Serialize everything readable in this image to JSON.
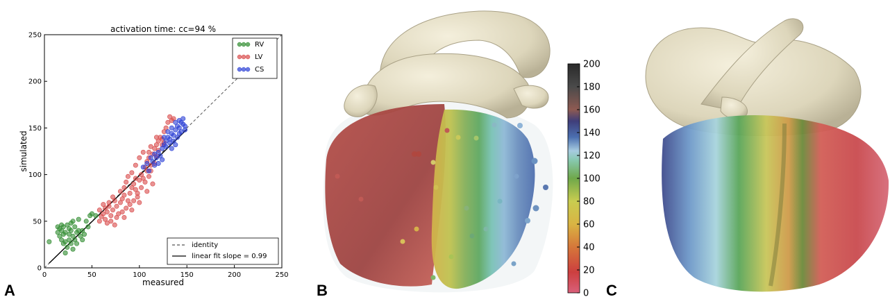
{
  "figure": {
    "panels": [
      "A",
      "B",
      "C"
    ]
  },
  "chart_data": [
    {
      "type": "scatter",
      "title": "activation time: cc=94 %",
      "xlabel": "measured",
      "ylabel": "simulated",
      "xlim": [
        0,
        250
      ],
      "ylim": [
        0,
        250
      ],
      "xticks": [
        0,
        50,
        100,
        150,
        200,
        250
      ],
      "yticks": [
        0,
        50,
        100,
        150,
        200,
        250
      ],
      "grid": false,
      "legend_top": "top-right",
      "legend_bottom": "bottom-right",
      "series": [
        {
          "name": "RV",
          "color": "#2e8b2e",
          "points": [
            [
              5,
              28
            ],
            [
              14,
              38
            ],
            [
              16,
              42
            ],
            [
              18,
              40
            ],
            [
              20,
              44
            ],
            [
              22,
              38
            ],
            [
              24,
              46
            ],
            [
              26,
              42
            ],
            [
              28,
              48
            ],
            [
              30,
              50
            ],
            [
              32,
              44
            ],
            [
              20,
              36
            ],
            [
              18,
              30
            ],
            [
              22,
              28
            ],
            [
              26,
              30
            ],
            [
              28,
              26
            ],
            [
              30,
              34
            ],
            [
              34,
              38
            ],
            [
              36,
              40
            ],
            [
              38,
              34
            ],
            [
              24,
              22
            ],
            [
              20,
              26
            ],
            [
              16,
              34
            ],
            [
              40,
              40
            ],
            [
              42,
              36
            ],
            [
              44,
              50
            ],
            [
              48,
              56
            ],
            [
              50,
              58
            ],
            [
              36,
              52
            ],
            [
              32,
              30
            ],
            [
              30,
              20
            ],
            [
              22,
              16
            ],
            [
              46,
              44
            ],
            [
              26,
              36
            ],
            [
              28,
              40
            ],
            [
              54,
              56
            ],
            [
              40,
              30
            ],
            [
              34,
              26
            ],
            [
              18,
              46
            ],
            [
              14,
              44
            ]
          ]
        },
        {
          "name": "LV",
          "color": "#d84a4a",
          "points": [
            [
              58,
              62
            ],
            [
              60,
              55
            ],
            [
              62,
              58
            ],
            [
              64,
              64
            ],
            [
              66,
              60
            ],
            [
              68,
              66
            ],
            [
              70,
              56
            ],
            [
              72,
              62
            ],
            [
              74,
              72
            ],
            [
              76,
              66
            ],
            [
              78,
              58
            ],
            [
              80,
              70
            ],
            [
              82,
              74
            ],
            [
              84,
              78
            ],
            [
              86,
              64
            ],
            [
              88,
              72
            ],
            [
              90,
              80
            ],
            [
              92,
              86
            ],
            [
              94,
              90
            ],
            [
              96,
              84
            ],
            [
              98,
              76
            ],
            [
              100,
              94
            ],
            [
              102,
              100
            ],
            [
              104,
              96
            ],
            [
              106,
              108
            ],
            [
              108,
              114
            ],
            [
              110,
              118
            ],
            [
              112,
              110
            ],
            [
              114,
              122
            ],
            [
              116,
              128
            ],
            [
              118,
              132
            ],
            [
              120,
              136
            ],
            [
              122,
              140
            ],
            [
              124,
              138
            ],
            [
              126,
              146
            ],
            [
              128,
              150
            ],
            [
              130,
              156
            ],
            [
              132,
              162
            ],
            [
              134,
              158
            ],
            [
              136,
              160
            ],
            [
              88,
              98
            ],
            [
              92,
              102
            ],
            [
              86,
              92
            ],
            [
              84,
              86
            ],
            [
              80,
              82
            ],
            [
              96,
              110
            ],
            [
              100,
              118
            ],
            [
              104,
              124
            ],
            [
              72,
              76
            ],
            [
              68,
              70
            ],
            [
              64,
              52
            ],
            [
              70,
              50
            ],
            [
              76,
              54
            ],
            [
              82,
              60
            ],
            [
              90,
              68
            ],
            [
              94,
              72
            ],
            [
              98,
              80
            ],
            [
              102,
              86
            ],
            [
              106,
              92
            ],
            [
              110,
              98
            ],
            [
              112,
              104
            ],
            [
              116,
              112
            ],
            [
              118,
              120
            ],
            [
              120,
              126
            ],
            [
              124,
              132
            ],
            [
              126,
              134
            ],
            [
              66,
              48
            ],
            [
              74,
              46
            ],
            [
              84,
              54
            ],
            [
              92,
              62
            ],
            [
              100,
              70
            ],
            [
              108,
              82
            ],
            [
              114,
              90
            ],
            [
              62,
              68
            ],
            [
              58,
              50
            ],
            [
              96,
              96
            ],
            [
              108,
              104
            ],
            [
              110,
              124
            ],
            [
              112,
              130
            ],
            [
              118,
              140
            ]
          ]
        },
        {
          "name": "CS",
          "color": "#2a3fd6",
          "points": [
            [
              104,
              108
            ],
            [
              108,
              112
            ],
            [
              112,
              118
            ],
            [
              114,
              114
            ],
            [
              116,
              122
            ],
            [
              118,
              118
            ],
            [
              120,
              124
            ],
            [
              122,
              120
            ],
            [
              124,
              128
            ],
            [
              126,
              132
            ],
            [
              128,
              136
            ],
            [
              130,
              140
            ],
            [
              132,
              138
            ],
            [
              134,
              144
            ],
            [
              136,
              142
            ],
            [
              138,
              148
            ],
            [
              140,
              152
            ],
            [
              142,
              150
            ],
            [
              144,
              156
            ],
            [
              146,
              154
            ],
            [
              128,
              130
            ],
            [
              132,
              134
            ],
            [
              136,
              136
            ],
            [
              140,
              140
            ],
            [
              144,
              146
            ],
            [
              126,
              140
            ],
            [
              130,
              146
            ],
            [
              134,
              150
            ],
            [
              138,
              156
            ],
            [
              142,
              158
            ],
            [
              120,
              112
            ],
            [
              124,
              116
            ],
            [
              116,
              110
            ],
            [
              110,
              104
            ],
            [
              146,
              160
            ],
            [
              148,
              152
            ],
            [
              138,
              132
            ],
            [
              134,
              128
            ],
            [
              142,
              144
            ],
            [
              148,
              148
            ]
          ]
        }
      ],
      "lines": [
        {
          "name": "identity",
          "style": "dashed",
          "color": "#555555",
          "from": [
            0,
            0
          ],
          "to": [
            250,
            250
          ]
        },
        {
          "name": "linear fit slope = 0.99",
          "style": "solid",
          "color": "#000000",
          "from": [
            5,
            5
          ],
          "to": [
            150,
            148.5
          ]
        }
      ]
    },
    {
      "type": "colorbar",
      "ticks": [
        0,
        20,
        40,
        60,
        80,
        100,
        120,
        140,
        160,
        180,
        200
      ],
      "range": [
        0,
        200
      ],
      "colors": [
        "#d9607a",
        "#cc3f3f",
        "#d6773a",
        "#d9b443",
        "#c9cc50",
        "#6fa84a",
        "#88c9b0",
        "#a7cbe0",
        "#4b6fb0",
        "#3f3e7a",
        "#8e5a52",
        "#4a4a4a",
        "#2a2a2a"
      ]
    }
  ]
}
